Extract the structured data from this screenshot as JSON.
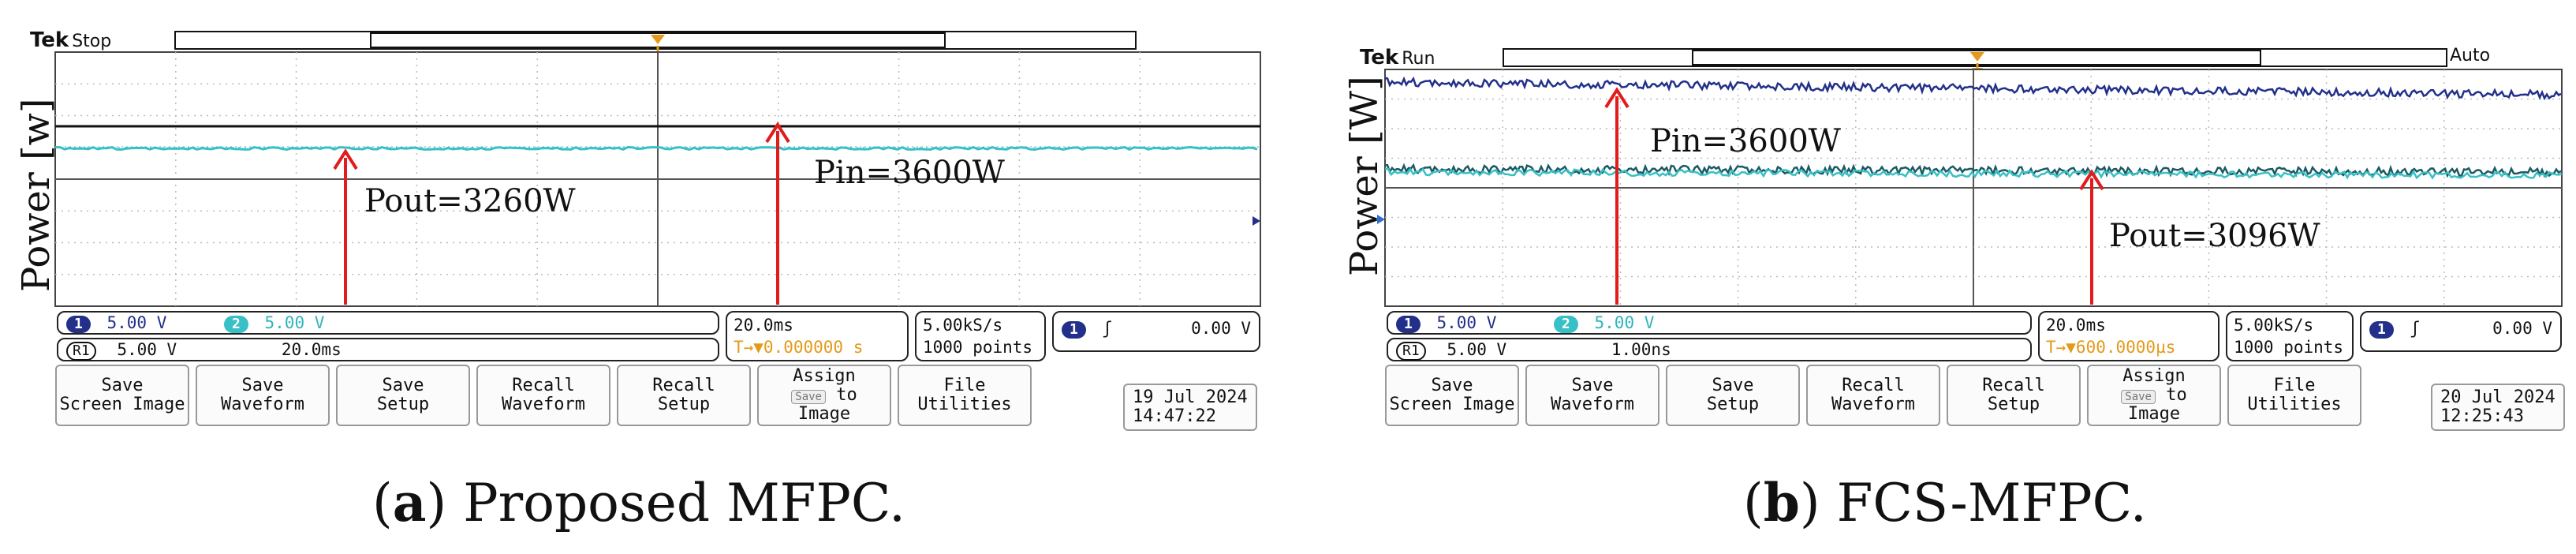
{
  "panels": [
    {
      "id": "a",
      "tek": "Tek",
      "run_state": "Stop",
      "auto_label": "",
      "ylabel": "Power [w]",
      "annotations": {
        "pout": "Pout=3260W",
        "pin": "Pin=3600W"
      },
      "ch1": {
        "badge": "1",
        "scale": "5.00 V"
      },
      "ch2": {
        "badge": "2",
        "scale": "5.00 V"
      },
      "ref": {
        "badge": "R1",
        "scale": "5.00 V",
        "time": "20.0ms"
      },
      "timebase": "20.0ms",
      "trigger_pos": "T→▼0.000000 s",
      "sample_rate": "5.00kS/s",
      "record_length": "1000 points",
      "trigger": {
        "badge": "1",
        "slope": "ʃ",
        "level": "0.00 V"
      },
      "date": "19 Jul  2024",
      "time": "14:47:22",
      "caption_letter": "a",
      "caption_text": ") Proposed MFPC."
    },
    {
      "id": "b",
      "tek": "Tek",
      "run_state": "Run",
      "auto_label": "Auto",
      "ylabel": "Power [W]",
      "annotations": {
        "pout": "Pout=3096W",
        "pin": "Pin=3600W"
      },
      "ch1": {
        "badge": "1",
        "scale": "5.00 V"
      },
      "ch2": {
        "badge": "2",
        "scale": "5.00 V"
      },
      "ref": {
        "badge": "R1",
        "scale": "5.00 V",
        "time": "1.00ns"
      },
      "timebase": "20.0ms",
      "trigger_pos": "T→▼600.0000µs",
      "sample_rate": "5.00kS/s",
      "record_length": "1000 points",
      "trigger": {
        "badge": "1",
        "slope": "ʃ",
        "level": "0.00 V"
      },
      "date": "20 Jul  2024",
      "time": "12:25:43",
      "caption_letter": "b",
      "caption_text": ") FCS-MFPC."
    }
  ],
  "softkeys": [
    {
      "line1": "Save",
      "line2": "Screen Image"
    },
    {
      "line1": "Save",
      "line2": "Waveform"
    },
    {
      "line1": "Save",
      "line2": "Setup"
    },
    {
      "line1": "Recall",
      "line2": "Waveform"
    },
    {
      "line1": "Recall",
      "line2": "Setup"
    },
    {
      "line1": "Assign",
      "line2": "to",
      "line3": "Image",
      "badge": "Save"
    },
    {
      "line1": "File",
      "line2": "Utilities"
    }
  ],
  "colors": {
    "ch1": "#22308a",
    "ch2": "#37c0c5",
    "arrow": "#e21b1b",
    "trigger": "#e39a1a"
  }
}
